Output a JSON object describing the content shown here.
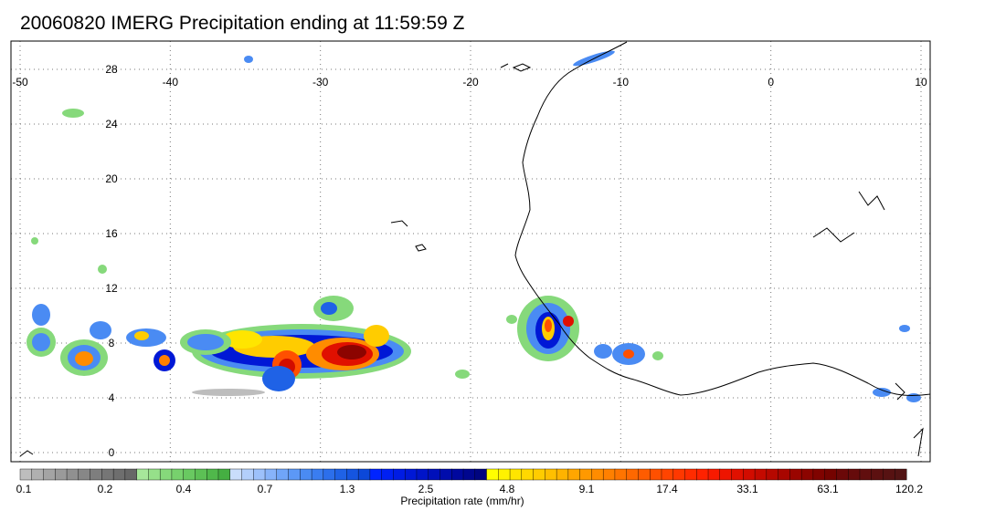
{
  "title": "20060820 IMERG Precipitation ending at 11:59:59 Z",
  "map": {
    "lon_range": [
      -50,
      10
    ],
    "lat_range": [
      -1.5,
      30.5
    ],
    "lon_ticks": [
      -50,
      -40,
      -30,
      -20,
      -10,
      0,
      10
    ],
    "lat_ticks": [
      0,
      4,
      8,
      12,
      16,
      20,
      24,
      28
    ],
    "lon_labels": [
      "-50",
      "-40",
      "-30",
      "-20",
      "-10",
      "0",
      "10"
    ],
    "lat_labels": [
      "0",
      "4",
      "8",
      "12",
      "16",
      "20",
      "24",
      "28"
    ],
    "grid": "dotted",
    "coastline_color": "#000000"
  },
  "colorbar": {
    "title": "Precipitation rate (mm/hr)",
    "tick_labels": [
      "0.1",
      "0.2",
      "0.4",
      "0.7",
      "1.3",
      "2.5",
      "4.8",
      "9.1",
      "17.4",
      "33.1",
      "63.1",
      "120.2"
    ],
    "colors": [
      "#bdbdbd",
      "#b0b0b0",
      "#a4a4a4",
      "#9a9a9a",
      "#909090",
      "#878787",
      "#7e7e7e",
      "#767676",
      "#6e6e6e",
      "#676767",
      "#a6e79a",
      "#96e08a",
      "#86d97b",
      "#77d16d",
      "#69c961",
      "#5cc055",
      "#50b84b",
      "#45af42",
      "#c9ddfb",
      "#b3cffb",
      "#9dc1fb",
      "#87b3fa",
      "#70a5f8",
      "#5c98f6",
      "#4a8bf3",
      "#3a7df0",
      "#2c6feb",
      "#1f62e6",
      "#1555e0",
      "#0c48d9",
      "#0024ff",
      "#0020f2",
      "#001ce4",
      "#0018d6",
      "#0014c8",
      "#0010ba",
      "#000cac",
      "#00089e",
      "#00068f",
      "#000580",
      "#ffff00",
      "#fff200",
      "#ffe500",
      "#ffd800",
      "#ffcc00",
      "#ffbf00",
      "#ffb300",
      "#ffa600",
      "#ff9900",
      "#ff8c00",
      "#ff8000",
      "#ff7400",
      "#ff6800",
      "#ff5c00",
      "#ff5000",
      "#ff4400",
      "#ff3800",
      "#ff2c00",
      "#ff2200",
      "#f81a00",
      "#ee1400",
      "#e01000",
      "#d20c00",
      "#c40a00",
      "#b60800",
      "#a80600",
      "#9a0500",
      "#8c0400",
      "#800300",
      "#750300",
      "#6b0808",
      "#660b0b",
      "#610e0e",
      "#5c1010",
      "#571212",
      "#521414"
    ]
  }
}
